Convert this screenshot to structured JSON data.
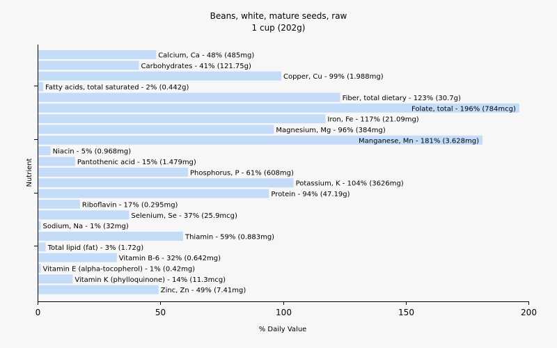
{
  "chart_data": {
    "type": "bar",
    "orientation": "horizontal",
    "title": "Beans, white, mature seeds, raw",
    "subtitle": "1 cup (202g)",
    "xlabel": "% Daily Value",
    "ylabel": "Nutrient",
    "xlim": [
      0,
      200
    ],
    "xticks": [
      0,
      50,
      100,
      150,
      200
    ],
    "bar_color": "#c5dcf8",
    "categories": [
      "Calcium, Ca",
      "Carbohydrates",
      "Copper, Cu",
      "Fatty acids, total saturated",
      "Fiber, total dietary",
      "Folate, total",
      "Iron, Fe",
      "Magnesium, Mg",
      "Manganese, Mn",
      "Niacin",
      "Pantothenic acid",
      "Phosphorus, P",
      "Potassium, K",
      "Protein",
      "Riboflavin",
      "Selenium, Se",
      "Sodium, Na",
      "Thiamin",
      "Total lipid (fat)",
      "Vitamin B-6",
      "Vitamin E (alpha-tocopherol)",
      "Vitamin K (phylloquinone)",
      "Zinc, Zn"
    ],
    "values": [
      48,
      41,
      99,
      2,
      123,
      196,
      117,
      96,
      181,
      5,
      15,
      61,
      104,
      94,
      17,
      37,
      1,
      59,
      3,
      32,
      1,
      14,
      49
    ],
    "labels": [
      "Calcium, Ca - 48% (485mg)",
      "Carbohydrates - 41% (121.75g)",
      "Copper, Cu - 99% (1.988mg)",
      "Fatty acids, total saturated - 2% (0.442g)",
      "Fiber, total dietary - 123% (30.7g)",
      "Folate, total - 196% (784mcg)",
      "Iron, Fe - 117% (21.09mg)",
      "Magnesium, Mg - 96% (384mg)",
      "Manganese, Mn - 181% (3.628mg)",
      "Niacin - 5% (0.968mg)",
      "Pantothenic acid - 15% (1.479mg)",
      "Phosphorus, P - 61% (608mg)",
      "Potassium, K - 104% (3626mg)",
      "Protein - 94% (47.19g)",
      "Riboflavin - 17% (0.295mg)",
      "Selenium, Se - 37% (25.9mcg)",
      "Sodium, Na - 1% (32mg)",
      "Thiamin - 59% (0.883mg)",
      "Total lipid (fat) - 3% (1.72g)",
      "Vitamin B-6 - 32% (0.642mg)",
      "Vitamin E (alpha-tocopherol) - 1% (0.42mg)",
      "Vitamin K (phylloquinone) - 14% (11.3mcg)",
      "Zinc, Zn - 49% (7.41mg)"
    ],
    "grid": false,
    "legend": "none"
  }
}
